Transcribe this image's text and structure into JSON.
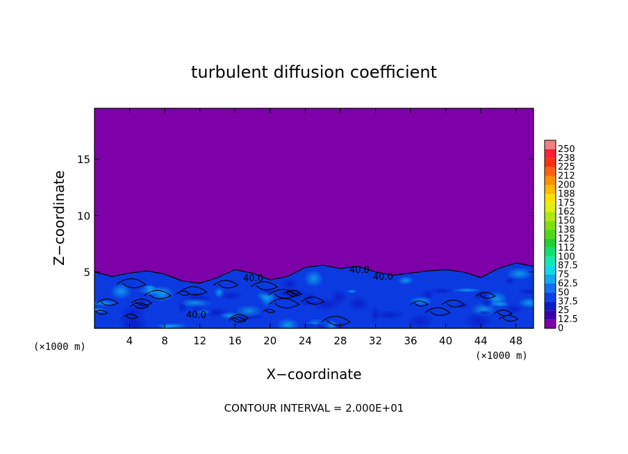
{
  "chart_data": {
    "type": "heatmap",
    "title": "turbulent diffusion coefficient",
    "xlabel": "X−coordinate",
    "ylabel": "Z−coordinate",
    "x_unit": "(×1000 m)",
    "x_unit_right": "(×1000 m)",
    "footer": "CONTOUR INTERVAL = 2.000E+01",
    "xlim": [
      0,
      50
    ],
    "ylim": [
      0,
      19.5
    ],
    "x_ticks": [
      4,
      8,
      12,
      16,
      20,
      24,
      28,
      32,
      36,
      40,
      44,
      48
    ],
    "y_ticks": [
      5,
      10,
      15
    ],
    "contour_labels": [
      "40.0",
      "40.0",
      "40.0",
      "40.0"
    ],
    "background_color": "#7d00a8",
    "colorbar": {
      "labels": [
        "0",
        "12.5",
        "25",
        "37.5",
        "50",
        "62.5",
        "75",
        "87.5",
        "100",
        "112",
        "125",
        "138",
        "150",
        "162",
        "175",
        "188",
        "200",
        "212",
        "225",
        "238",
        "250"
      ],
      "colors": [
        "#7d00a8",
        "#3b00b0",
        "#0a1ec8",
        "#0a40e6",
        "#1070f0",
        "#10a8f0",
        "#10d8e8",
        "#10e8b0",
        "#10e070",
        "#20d030",
        "#50d818",
        "#80e010",
        "#b0e810",
        "#e0f010",
        "#ffe000",
        "#ffb800",
        "#ff9000",
        "#ff6010",
        "#ff3010",
        "#ff2030",
        "#f08080"
      ]
    },
    "turbulent_layer_top": [
      5.0,
      4.6,
      4.9,
      5.1,
      4.8,
      4.2,
      4.0,
      4.5,
      5.2,
      4.9,
      4.3,
      4.6,
      5.4,
      5.6,
      5.3,
      5.5,
      5.0,
      4.7,
      4.9,
      5.1,
      5.2,
      5.0,
      4.5,
      5.3,
      5.8,
      5.5
    ]
  }
}
